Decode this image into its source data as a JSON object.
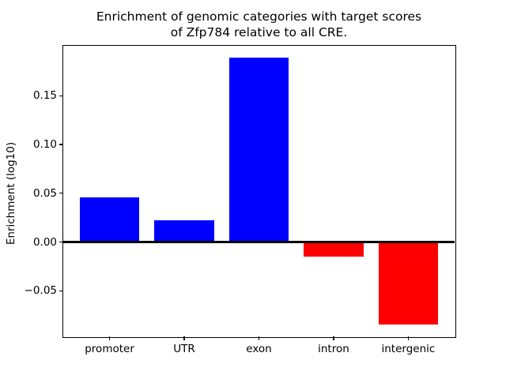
{
  "chart_data": {
    "type": "bar",
    "title": "Enrichment of genomic categories with target scores\nof Zfp784 relative to all CRE.",
    "xlabel": "",
    "ylabel": "Enrichment (log10)",
    "categories": [
      "promoter",
      "UTR",
      "exon",
      "intron",
      "intergenic"
    ],
    "values": [
      0.046,
      0.022,
      0.189,
      -0.015,
      -0.084
    ],
    "bar_colors": [
      "#0000ff",
      "#0000ff",
      "#0000ff",
      "#ff0000",
      "#ff0000"
    ],
    "positive_color": "#0000ff",
    "negative_color": "#ff0000",
    "bar_width": 0.8,
    "xlim": [
      -0.62,
      4.62
    ],
    "ylim": [
      -0.0965,
      0.201
    ],
    "yticks": [
      -0.05,
      0.0,
      0.05,
      0.1,
      0.15
    ],
    "ytick_labels": [
      "−0.05",
      "0.00",
      "0.05",
      "0.10",
      "0.15"
    ],
    "zero_line": true,
    "grid": false,
    "legend": null,
    "background_color": "#ffffff",
    "axis_color": "#000000"
  }
}
